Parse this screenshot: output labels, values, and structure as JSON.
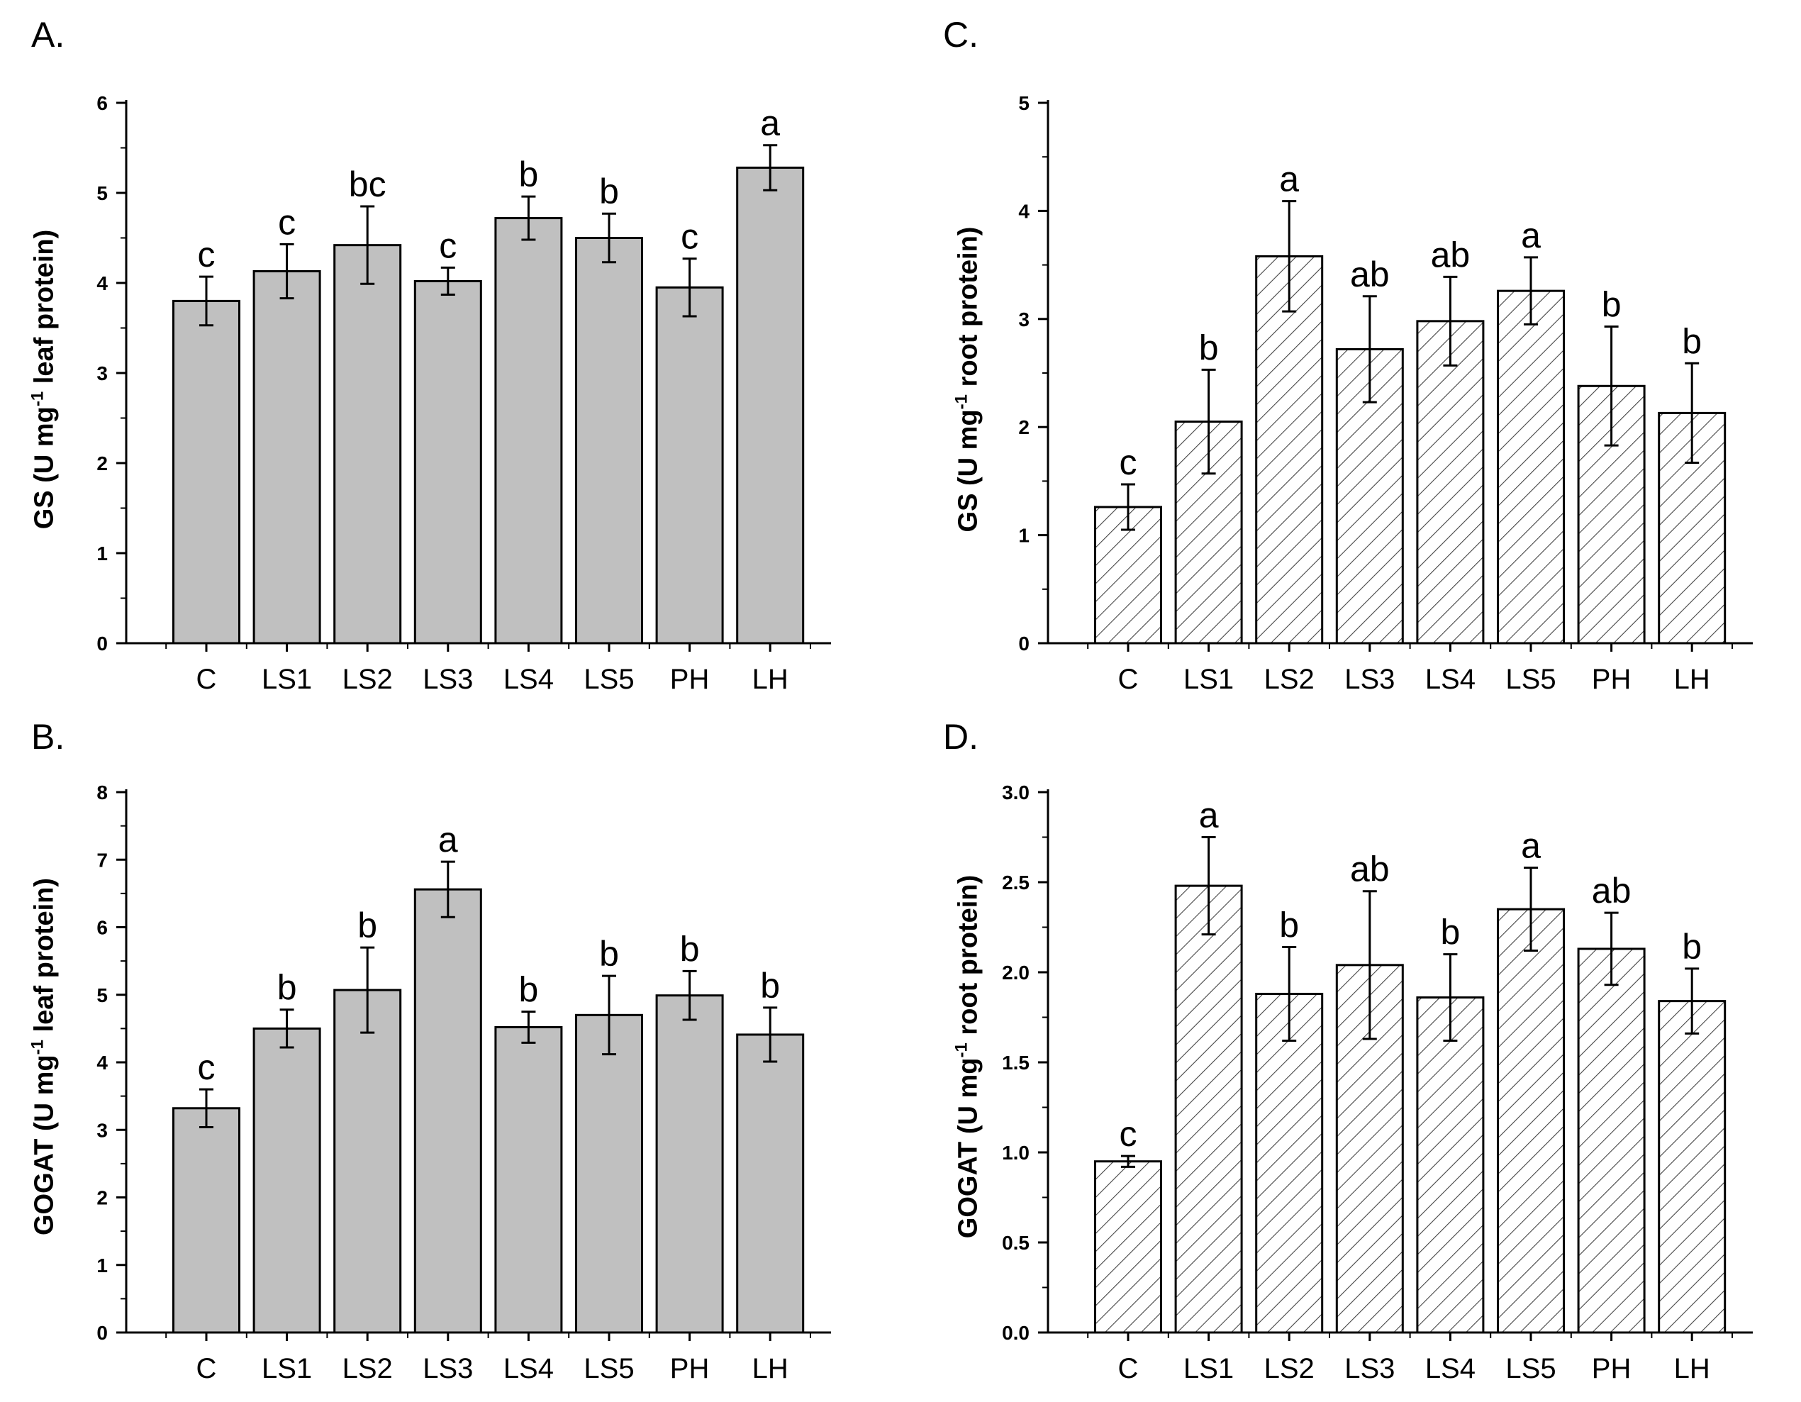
{
  "chart_data": [
    {
      "panel": "A.",
      "type": "bar",
      "ylabel_main": "GS (U mg",
      "ylabel_sup": "-1",
      "ylabel_tail": " leaf protein)",
      "ylim": [
        0,
        6
      ],
      "yticks": [
        "0",
        "1",
        "2",
        "3",
        "4",
        "5",
        "6"
      ],
      "categories": [
        "C",
        "LS1",
        "LS2",
        "LS3",
        "LS4",
        "LS5",
        "PH",
        "LH"
      ],
      "values": [
        3.8,
        4.13,
        4.42,
        4.02,
        4.72,
        4.5,
        3.95,
        5.28
      ],
      "errors": [
        0.27,
        0.3,
        0.43,
        0.15,
        0.24,
        0.27,
        0.32,
        0.25
      ],
      "letters": [
        "c",
        "c",
        "bc",
        "c",
        "b",
        "b",
        "c",
        "a"
      ],
      "fill": "solid"
    },
    {
      "panel": "B.",
      "type": "bar",
      "ylabel_main": "GOGAT (U mg",
      "ylabel_sup": "-1",
      "ylabel_tail": " leaf protein)",
      "ylim": [
        0,
        8
      ],
      "yticks": [
        "0",
        "1",
        "2",
        "3",
        "4",
        "5",
        "6",
        "7",
        "8"
      ],
      "categories": [
        "C",
        "LS1",
        "LS2",
        "LS3",
        "LS4",
        "LS5",
        "PH",
        "LH"
      ],
      "values": [
        3.32,
        4.5,
        5.07,
        6.56,
        4.52,
        4.7,
        4.99,
        4.41
      ],
      "errors": [
        0.28,
        0.28,
        0.63,
        0.41,
        0.23,
        0.58,
        0.36,
        0.4
      ],
      "letters": [
        "c",
        "b",
        "b",
        "a",
        "b",
        "b",
        "b",
        "b"
      ],
      "fill": "solid"
    },
    {
      "panel": "C.",
      "type": "bar",
      "ylabel_main": "GS (U mg",
      "ylabel_sup": "-1",
      "ylabel_tail": " root protein)",
      "ylim": [
        0,
        5
      ],
      "yticks": [
        "0",
        "1",
        "2",
        "3",
        "4",
        "5"
      ],
      "categories": [
        "C",
        "LS1",
        "LS2",
        "LS3",
        "LS4",
        "LS5",
        "PH",
        "LH"
      ],
      "values": [
        1.26,
        2.05,
        3.58,
        2.72,
        2.98,
        3.26,
        2.38,
        2.13
      ],
      "errors": [
        0.21,
        0.48,
        0.51,
        0.49,
        0.41,
        0.31,
        0.55,
        0.46
      ],
      "letters": [
        "c",
        "b",
        "a",
        "ab",
        "ab",
        "a",
        "b",
        "b"
      ],
      "fill": "hatched"
    },
    {
      "panel": "D.",
      "type": "bar",
      "ylabel_main": "GOGAT (U mg",
      "ylabel_sup": "-1",
      "ylabel_tail": " root protein)",
      "ylim": [
        0,
        3.0
      ],
      "yticks": [
        "0.0",
        "0.5",
        "1.0",
        "1.5",
        "2.0",
        "2.5",
        "3.0"
      ],
      "categories": [
        "C",
        "LS1",
        "LS2",
        "LS3",
        "LS4",
        "LS5",
        "PH",
        "LH"
      ],
      "values": [
        0.95,
        2.48,
        1.88,
        2.04,
        1.86,
        2.35,
        2.13,
        1.84
      ],
      "errors": [
        0.03,
        0.27,
        0.26,
        0.41,
        0.24,
        0.23,
        0.2,
        0.18
      ],
      "letters": [
        "c",
        "a",
        "b",
        "ab",
        "b",
        "a",
        "ab",
        "b"
      ],
      "fill": "hatched"
    }
  ],
  "colors": {
    "solid_bar": "#c0c0c0",
    "hatched_bar": "#ffffff",
    "hatch_line": "#444444",
    "axis": "#000000"
  }
}
